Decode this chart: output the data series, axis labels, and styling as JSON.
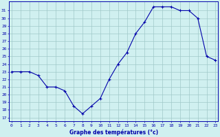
{
  "hours": [
    0,
    1,
    2,
    3,
    4,
    5,
    6,
    7,
    8,
    9,
    10,
    11,
    12,
    13,
    14,
    15,
    16,
    17,
    18,
    19,
    20,
    21,
    22,
    23
  ],
  "temps": [
    23,
    23,
    23,
    22.5,
    21,
    21,
    20.5,
    18.5,
    17.5,
    18.5,
    19.5,
    22,
    24,
    25.5,
    28,
    29.5,
    31.5,
    31.5,
    31.5,
    31,
    31,
    30,
    25,
    24.5
  ],
  "line_color": "#0000aa",
  "marker": "+",
  "bg_color": "#d0f0f0",
  "grid_color": "#a0c8c8",
  "xlabel": "Graphe des températures (°c)",
  "ytick_labels": [
    "17",
    "18",
    "19",
    "20",
    "21",
    "22",
    "23",
    "24",
    "25",
    "26",
    "27",
    "28",
    "29",
    "30",
    "31"
  ],
  "ytick_vals": [
    17,
    18,
    19,
    20,
    21,
    22,
    23,
    24,
    25,
    26,
    27,
    28,
    29,
    30,
    31
  ],
  "ylim": [
    16.5,
    32.2
  ],
  "xlim": [
    -0.3,
    23.3
  ],
  "tick_color": "#0000aa",
  "label_color": "#0000aa",
  "axis_color": "#0000aa"
}
